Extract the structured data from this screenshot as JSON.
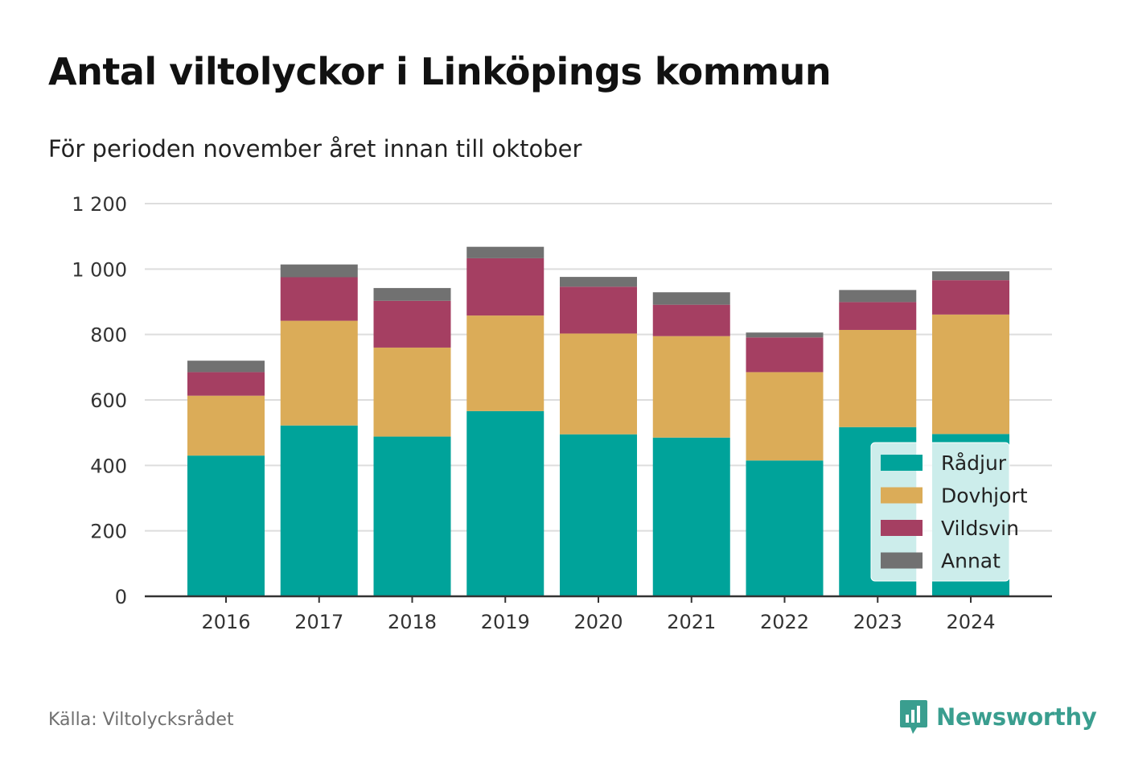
{
  "title": "Antal viltolyckor i Linköpings kommun",
  "subtitle": "För perioden november året innan till oktober",
  "source": "Källa: Viltolycksrådet",
  "brand": {
    "name": "Newsworthy",
    "icon": "newsworthy-logo-icon",
    "color": "#3a9e8f"
  },
  "chart_data": {
    "type": "bar",
    "stacked": true,
    "categories": [
      "2016",
      "2017",
      "2018",
      "2019",
      "2020",
      "2021",
      "2022",
      "2023",
      "2024"
    ],
    "series": [
      {
        "name": "Rådjur",
        "color": "#00a39a",
        "values": [
          430,
          522,
          488,
          566,
          495,
          485,
          415,
          517,
          496
        ]
      },
      {
        "name": "Dovhjort",
        "color": "#dbac58",
        "values": [
          183,
          320,
          272,
          292,
          308,
          310,
          270,
          297,
          365
        ]
      },
      {
        "name": "Vildsvin",
        "color": "#a53f62",
        "values": [
          72,
          133,
          143,
          175,
          143,
          96,
          106,
          85,
          105
        ]
      },
      {
        "name": "Annat",
        "color": "#717171",
        "values": [
          35,
          39,
          39,
          35,
          30,
          38,
          15,
          37,
          27
        ]
      }
    ],
    "ylim": [
      0,
      1200
    ],
    "yticks": [
      0,
      200,
      400,
      600,
      800,
      1000,
      1200
    ],
    "ytick_labels": [
      "0",
      "200",
      "400",
      "600",
      "800",
      "1 000",
      "1 200"
    ],
    "xlabel": "",
    "ylabel": "",
    "grid": true,
    "legend_position": "bottom-right"
  }
}
